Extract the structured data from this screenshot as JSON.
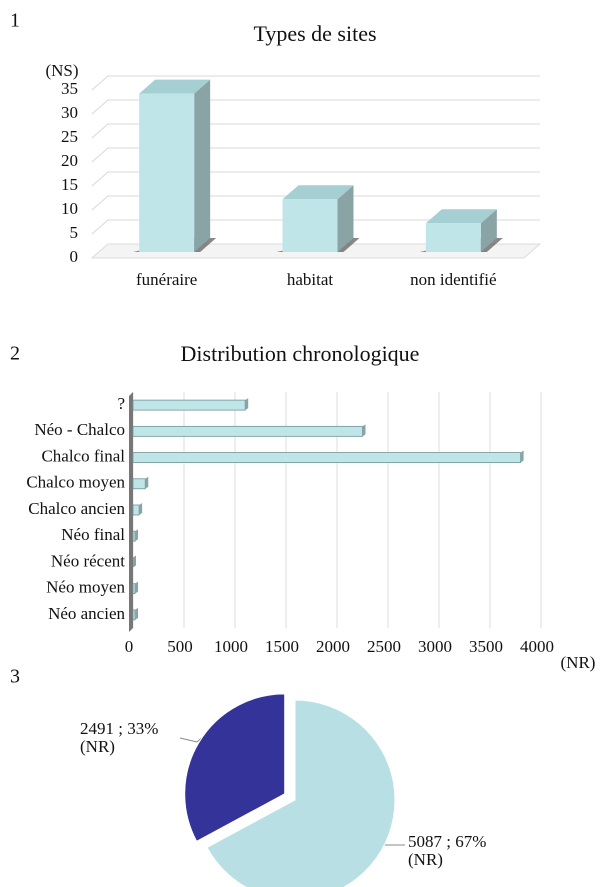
{
  "chart_data": [
    {
      "type": "bar",
      "panel": "1",
      "title": "Types de sites",
      "ylabel": "(NS)",
      "categories": [
        "funéraire",
        "habitat",
        "non identifié"
      ],
      "values": [
        33,
        11,
        6
      ],
      "color": "#bfe5e9",
      "ylim": [
        0,
        35
      ],
      "yticks": [
        0,
        5,
        10,
        15,
        20,
        25,
        30,
        35
      ],
      "grid": true
    },
    {
      "type": "hbar",
      "panel": "2",
      "title": "Distribution chronologique",
      "xlabel": "(NR)",
      "categories": [
        "?",
        "Néo - Chalco",
        "Chalco final",
        "Chalco moyen",
        "Chalco ancien",
        "Néo final",
        "Néo récent",
        "Néo moyen",
        "Néo ancien"
      ],
      "values": [
        1100,
        2250,
        3800,
        120,
        60,
        20,
        0,
        20,
        20
      ],
      "color": "#bfe5e9",
      "xlim": [
        0,
        4000
      ],
      "xticks": [
        0,
        500,
        1000,
        1500,
        2000,
        2500,
        3000,
        3500,
        4000
      ],
      "grid": true
    },
    {
      "type": "pie",
      "panel": "3",
      "unit_label": "(NR)",
      "values": [
        2491,
        5087
      ],
      "value_labels": [
        "2491 ; 33%",
        "5087 ; 67%"
      ],
      "colors": [
        "#333399",
        "#b8e0e4"
      ]
    }
  ]
}
